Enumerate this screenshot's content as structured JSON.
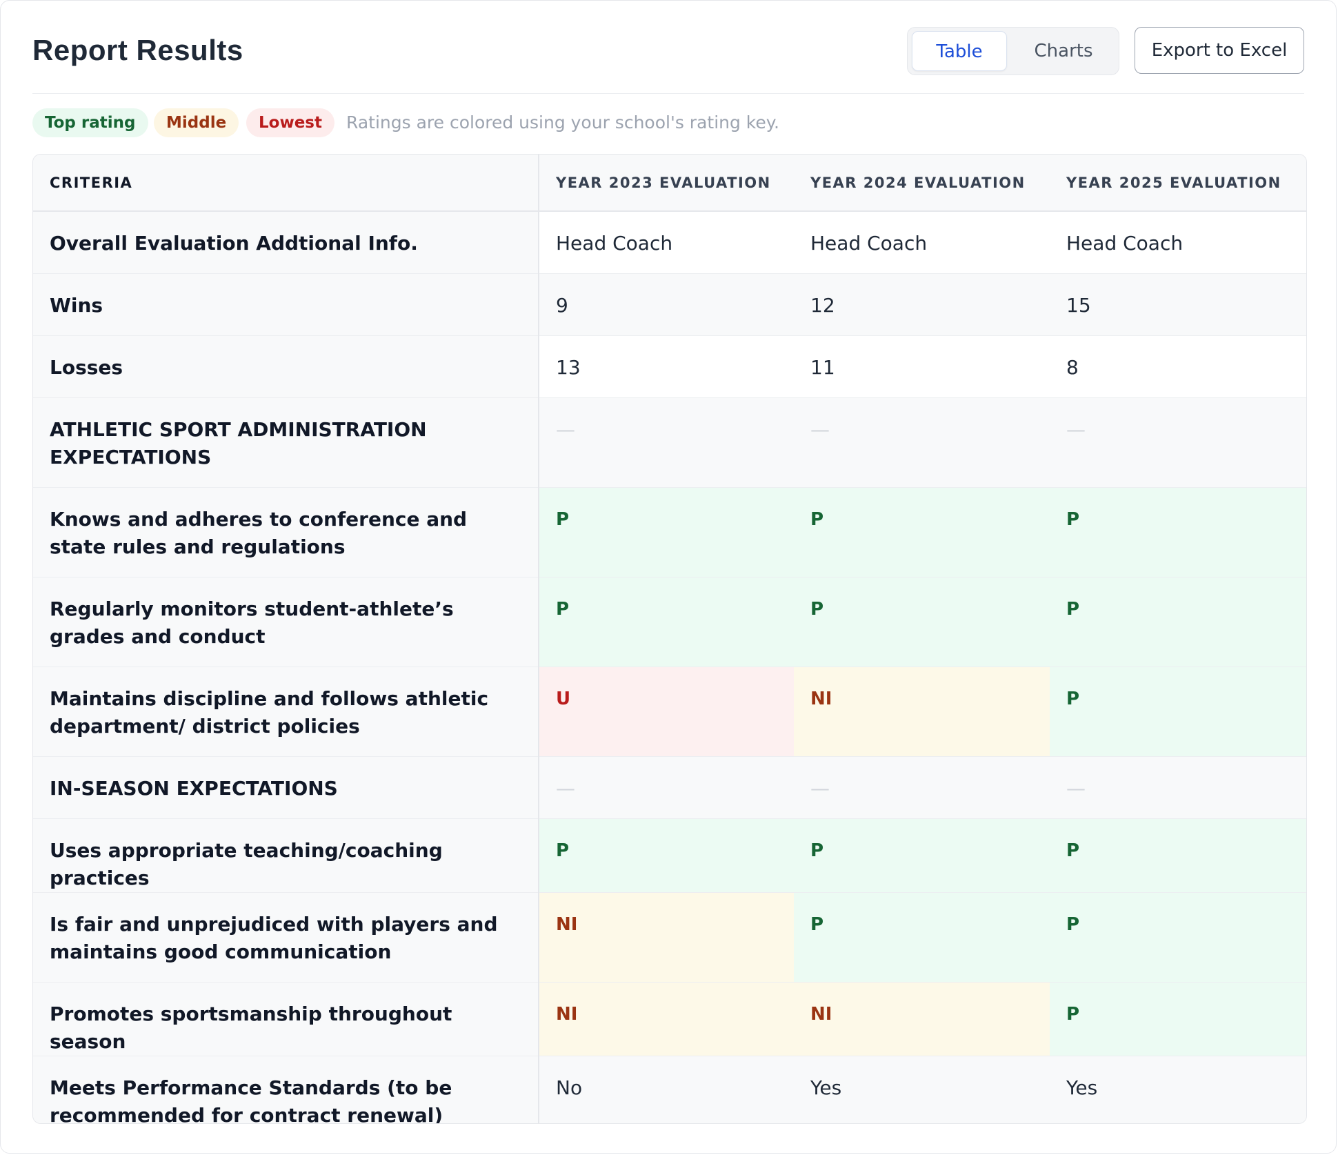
{
  "header": {
    "title": "Report Results",
    "view_tabs": [
      "Table",
      "Charts"
    ],
    "active_tab": "Table",
    "export_label": "Export to Excel"
  },
  "legend": {
    "top": "Top rating",
    "middle": "Middle",
    "lowest": "Lowest",
    "note": "Ratings are colored using your school's rating key."
  },
  "colors": {
    "accent": "#1d4ed8",
    "top_bg": "#ecfbf3",
    "top_text": "#166534",
    "middle_bg": "#fdf9e8",
    "middle_text": "#9a3412",
    "lowest_bg": "#fdf0f0",
    "lowest_text": "#b91c1c"
  },
  "table": {
    "headers": [
      "CRITERIA",
      "YEAR 2023 EVALUATION",
      "YEAR 2024 EVALUATION",
      "YEAR 2025 EVALUATION"
    ],
    "rows": [
      {
        "criteria": "Overall Evaluation Addtional Info.",
        "values": [
          "Head Coach",
          "Head Coach",
          "Head Coach"
        ]
      },
      {
        "criteria": "Wins",
        "values": [
          "9",
          "12",
          "15"
        ]
      },
      {
        "criteria": "Losses",
        "values": [
          "13",
          "11",
          "8"
        ]
      },
      {
        "criteria": "ATHLETIC SPORT ADMINISTRATION EXPECTATIONS",
        "values": [
          "—",
          "—",
          "—"
        ]
      },
      {
        "criteria": "Knows and adheres to conference and state rules and regulations",
        "values": [
          "P",
          "P",
          "P"
        ]
      },
      {
        "criteria": "Regularly monitors student-athlete’s grades and conduct",
        "values": [
          "P",
          "P",
          "P"
        ]
      },
      {
        "criteria": "Maintains discipline and follows athletic department/ district policies",
        "values": [
          "U",
          "NI",
          "P"
        ]
      },
      {
        "criteria": "IN-SEASON EXPECTATIONS",
        "values": [
          "—",
          "—",
          "—"
        ]
      },
      {
        "criteria": "Uses appropriate teaching/coaching practices",
        "values": [
          "P",
          "P",
          "P"
        ]
      },
      {
        "criteria": "Is fair and unprejudiced with players and maintains good communication",
        "values": [
          "NI",
          "P",
          "P"
        ]
      },
      {
        "criteria": "Promotes sportsmanship throughout season",
        "values": [
          "NI",
          "NI",
          "P"
        ]
      },
      {
        "criteria": "Meets Performance Standards (to be recommended for contract renewal)",
        "values": [
          "No",
          "Yes",
          "Yes"
        ]
      }
    ]
  }
}
